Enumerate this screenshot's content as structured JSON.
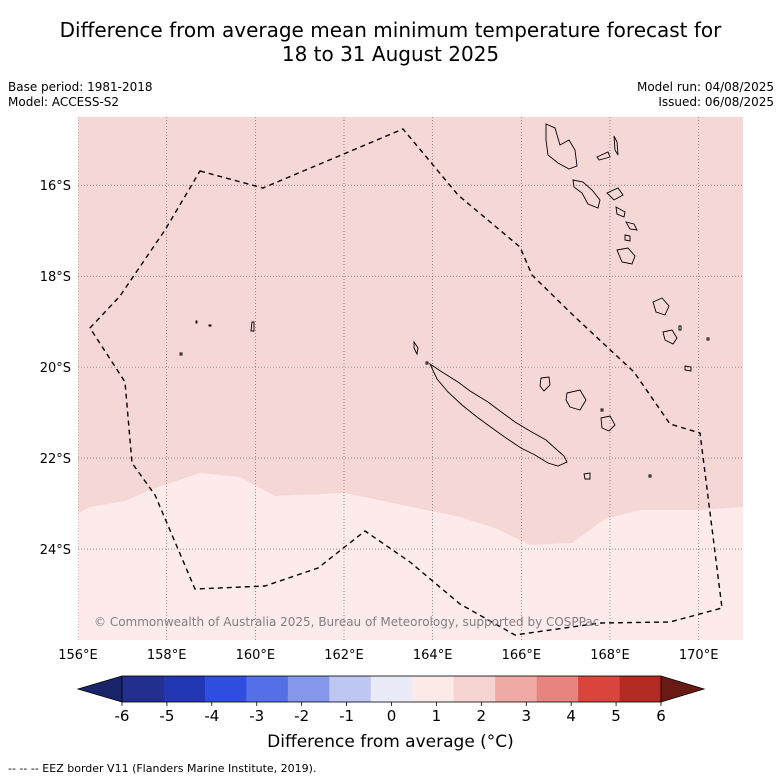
{
  "title_line1": "Difference from average mean minimum temperature forecast for",
  "title_line2": "18 to 31 August 2025",
  "meta": {
    "base_period": "Base period: 1981-2018",
    "model": "Model: ACCESS-S2",
    "model_run": "Model run: 04/08/2025",
    "issued": "Issued: 06/08/2025"
  },
  "map": {
    "lon_range": [
      156,
      171
    ],
    "lat_range": [
      -26.0,
      -14.5
    ],
    "lon_ticks": [
      156,
      158,
      160,
      162,
      164,
      166,
      168,
      170
    ],
    "lon_tick_labels": [
      "156°E",
      "158°E",
      "160°E",
      "162°E",
      "164°E",
      "166°E",
      "168°E",
      "170°E"
    ],
    "lat_ticks": [
      -16,
      -18,
      -20,
      -22,
      -24
    ],
    "lat_tick_labels": [
      "16°S",
      "18°S",
      "20°S",
      "22°S",
      "24°S"
    ],
    "grid": "dotted",
    "copyright": "© Commonwealth of Australia 2025, Bureau of Meteorology, supported by COSPPac",
    "colors": {
      "band_1_2": "#f5d7d5",
      "band_0_1": "#fcebea",
      "coast": "#000000",
      "eez": "#000000"
    }
  },
  "colorbar": {
    "tick_labels": [
      "-6",
      "-5",
      "-4",
      "-3",
      "-2",
      "-1",
      "0",
      "1",
      "2",
      "3",
      "4",
      "5",
      "6"
    ],
    "colors": [
      "#222f8e",
      "#2336b4",
      "#2f4ddf",
      "#5570e6",
      "#8597ea",
      "#bec6f2",
      "#e9ecf8",
      "#fbeae8",
      "#f5d3d0",
      "#efaaa6",
      "#e6857f",
      "#d9453c",
      "#b32a23"
    ],
    "under_color": "#1a2469",
    "over_color": "#6a1a14",
    "label": "Difference from average (°C)"
  },
  "footnote": "-- -- -- EEZ border V11 (Flanders Marine Institute, 2019)."
}
